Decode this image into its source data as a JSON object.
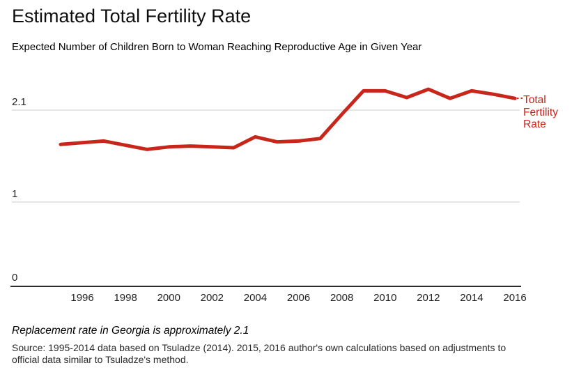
{
  "header": {
    "title": "Estimated Total Fertility Rate",
    "subtitle": "Expected Number of Children Born to Woman Reaching Reproductive Age in Given Year"
  },
  "chart_data": {
    "type": "line",
    "title": "Estimated Total Fertility Rate",
    "subtitle": "Expected Number of Children Born to Woman Reaching Reproductive Age in Given Year",
    "xlabel": "",
    "ylabel": "",
    "x": [
      1995,
      1996,
      1997,
      1998,
      1999,
      2000,
      2001,
      2002,
      2003,
      2004,
      2005,
      2006,
      2007,
      2008,
      2009,
      2010,
      2011,
      2012,
      2013,
      2014,
      2015,
      2016
    ],
    "series": [
      {
        "name": "Total Fertility Rate",
        "values": [
          1.69,
          1.71,
          1.73,
          1.68,
          1.63,
          1.66,
          1.67,
          1.66,
          1.65,
          1.78,
          1.72,
          1.73,
          1.76,
          2.05,
          2.33,
          2.33,
          2.25,
          2.35,
          2.24,
          2.33,
          2.29,
          2.24
        ]
      }
    ],
    "y_ticks": [
      {
        "value": 2.1,
        "label": "2.1"
      },
      {
        "value": 1,
        "label": "1"
      },
      {
        "value": 0,
        "label": "0"
      }
    ],
    "x_ticks": [
      1996,
      1998,
      2000,
      2002,
      2004,
      2006,
      2008,
      2010,
      2012,
      2014,
      2016
    ],
    "ylim": [
      0,
      2.58
    ],
    "grid": "horizontal",
    "legend_position": "right",
    "legend_label": "Total Fertility Rate",
    "line_color": "#c9261b",
    "grid_color": "#e5e5e5",
    "axis_color": "#2b2b2b"
  },
  "footer": {
    "note": "Replacement rate in Georgia is approximately 2.1",
    "source": "Source: 1995-2014 data based on Tsuladze (2014). 2015, 2016 author's own calculations based on adjustments to official data similar to Tsuladze's method."
  }
}
